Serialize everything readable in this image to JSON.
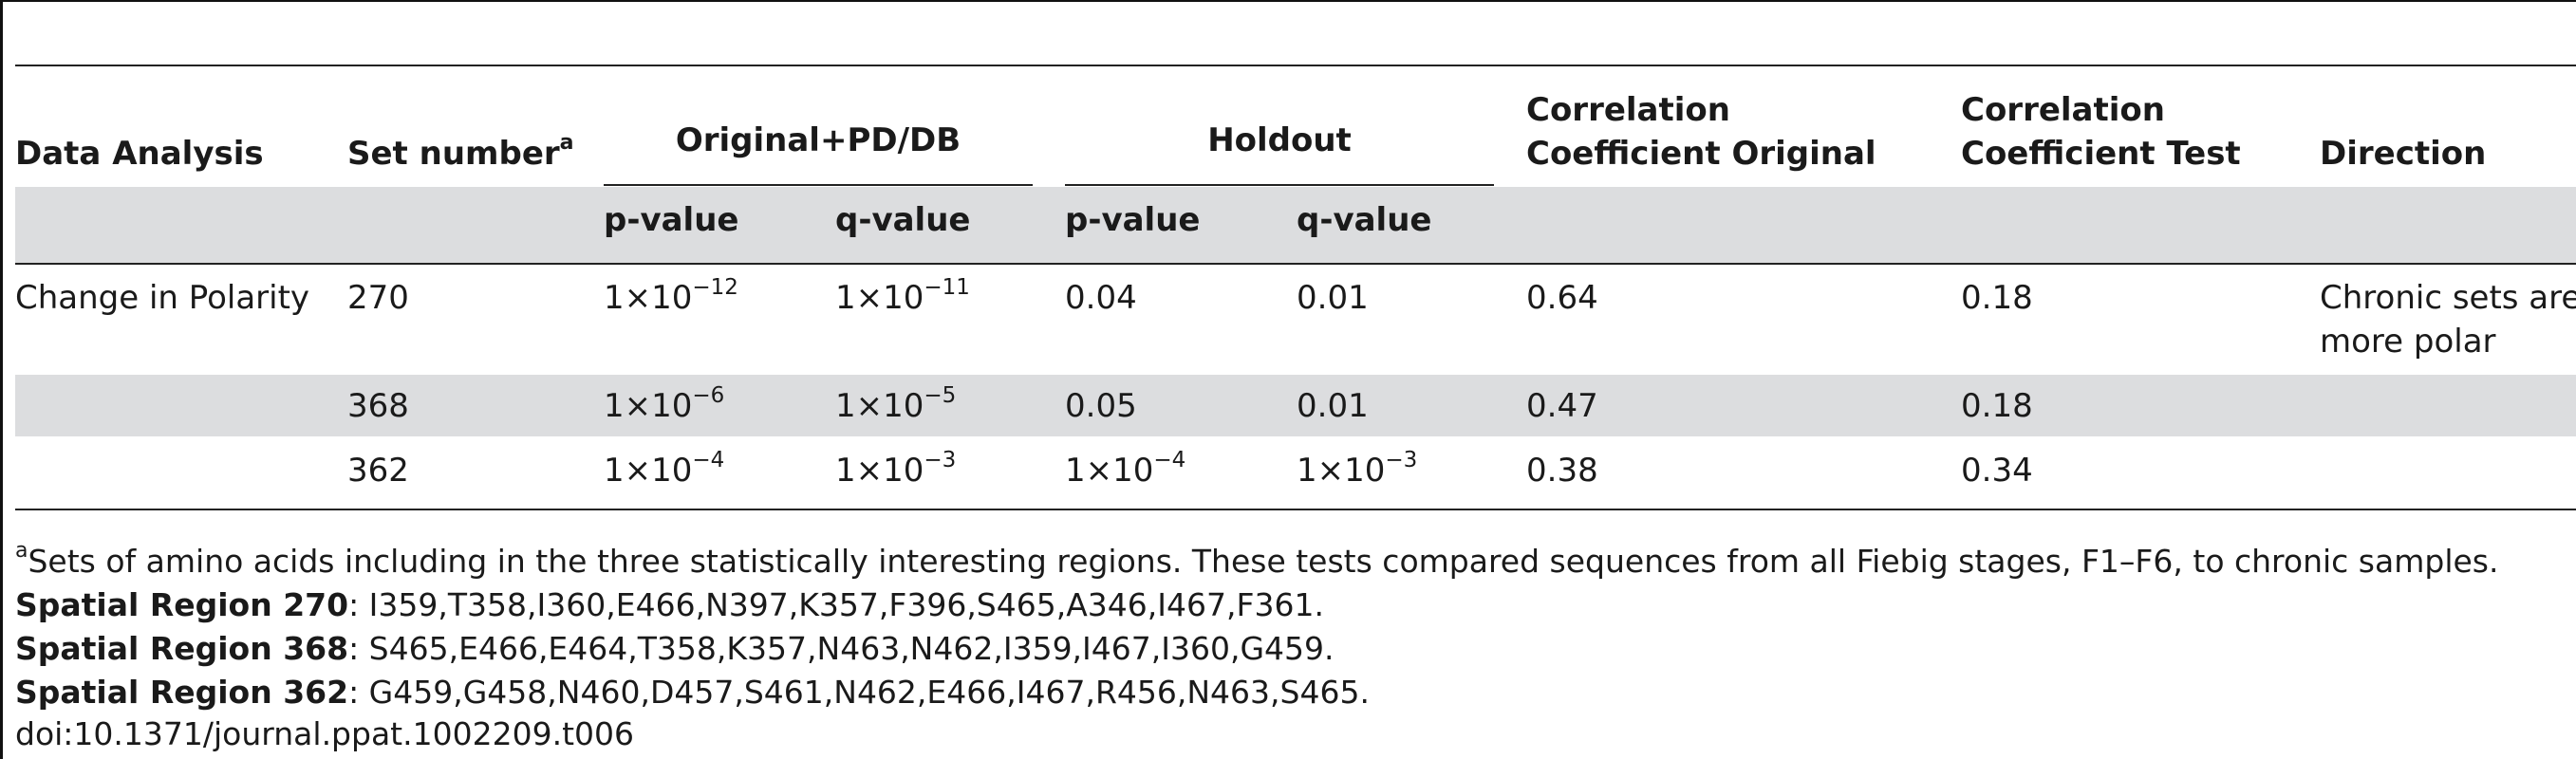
{
  "table": {
    "headers": {
      "data_analysis": "Data Analysis",
      "set_number": "Set number",
      "set_number_note": "a",
      "group_original": "Original+PD/DB",
      "group_holdout": "Holdout",
      "corr_original_line1": "Correlation",
      "corr_original_line2": "Coefficient Original",
      "corr_test_line1": "Correlation",
      "corr_test_line2": "Coefficient Test",
      "direction": "Direction",
      "p_value": "p-value",
      "q_value": "q-value"
    },
    "rows": [
      {
        "analysis": "Change in Polarity",
        "set": "270",
        "orig_p": {
          "m": "1×10",
          "e": "−12"
        },
        "orig_q": {
          "m": "1×10",
          "e": "−11"
        },
        "hold_p": "0.04",
        "hold_q": "0.01",
        "corr_orig": "0.64",
        "corr_test": "0.18",
        "direction_line1": "Chronic sets are",
        "direction_line2": "more polar"
      },
      {
        "analysis": "",
        "set": "368",
        "orig_p": {
          "m": "1×10",
          "e": "−6"
        },
        "orig_q": {
          "m": "1×10",
          "e": "−5"
        },
        "hold_p": "0.05",
        "hold_q": "0.01",
        "corr_orig": "0.47",
        "corr_test": "0.18"
      },
      {
        "analysis": "",
        "set": "362",
        "orig_p": {
          "m": "1×10",
          "e": "−4"
        },
        "orig_q": {
          "m": "1×10",
          "e": "−3"
        },
        "hold_p": {
          "m": "1×10",
          "e": "−4"
        },
        "hold_q": {
          "m": "1×10",
          "e": "−3"
        },
        "corr_orig": "0.38",
        "corr_test": "0.34"
      }
    ]
  },
  "footnotes": {
    "note_marker": "a",
    "note_text": "Sets of amino acids including in the three statistically interesting regions. These tests compared sequences from all Fiebig stages, F1–F6, to chronic samples.",
    "region_270_label": "Spatial Region 270",
    "region_270_text": ": I359,T358,I360,E466,N397,K357,F396,S465,A346,I467,F361.",
    "region_368_label": "Spatial Region 368",
    "region_368_text": ": S465,E466,E464,T358,K357,N463,N462,I359,I467,I360,G459.",
    "region_362_label": "Spatial Region 362",
    "region_362_text": ": G459,G458,N460,D457,S461,N462,E466,I467,R456,N463,S465.",
    "doi": "doi:10.1371/journal.ppat.1002209.t006"
  }
}
